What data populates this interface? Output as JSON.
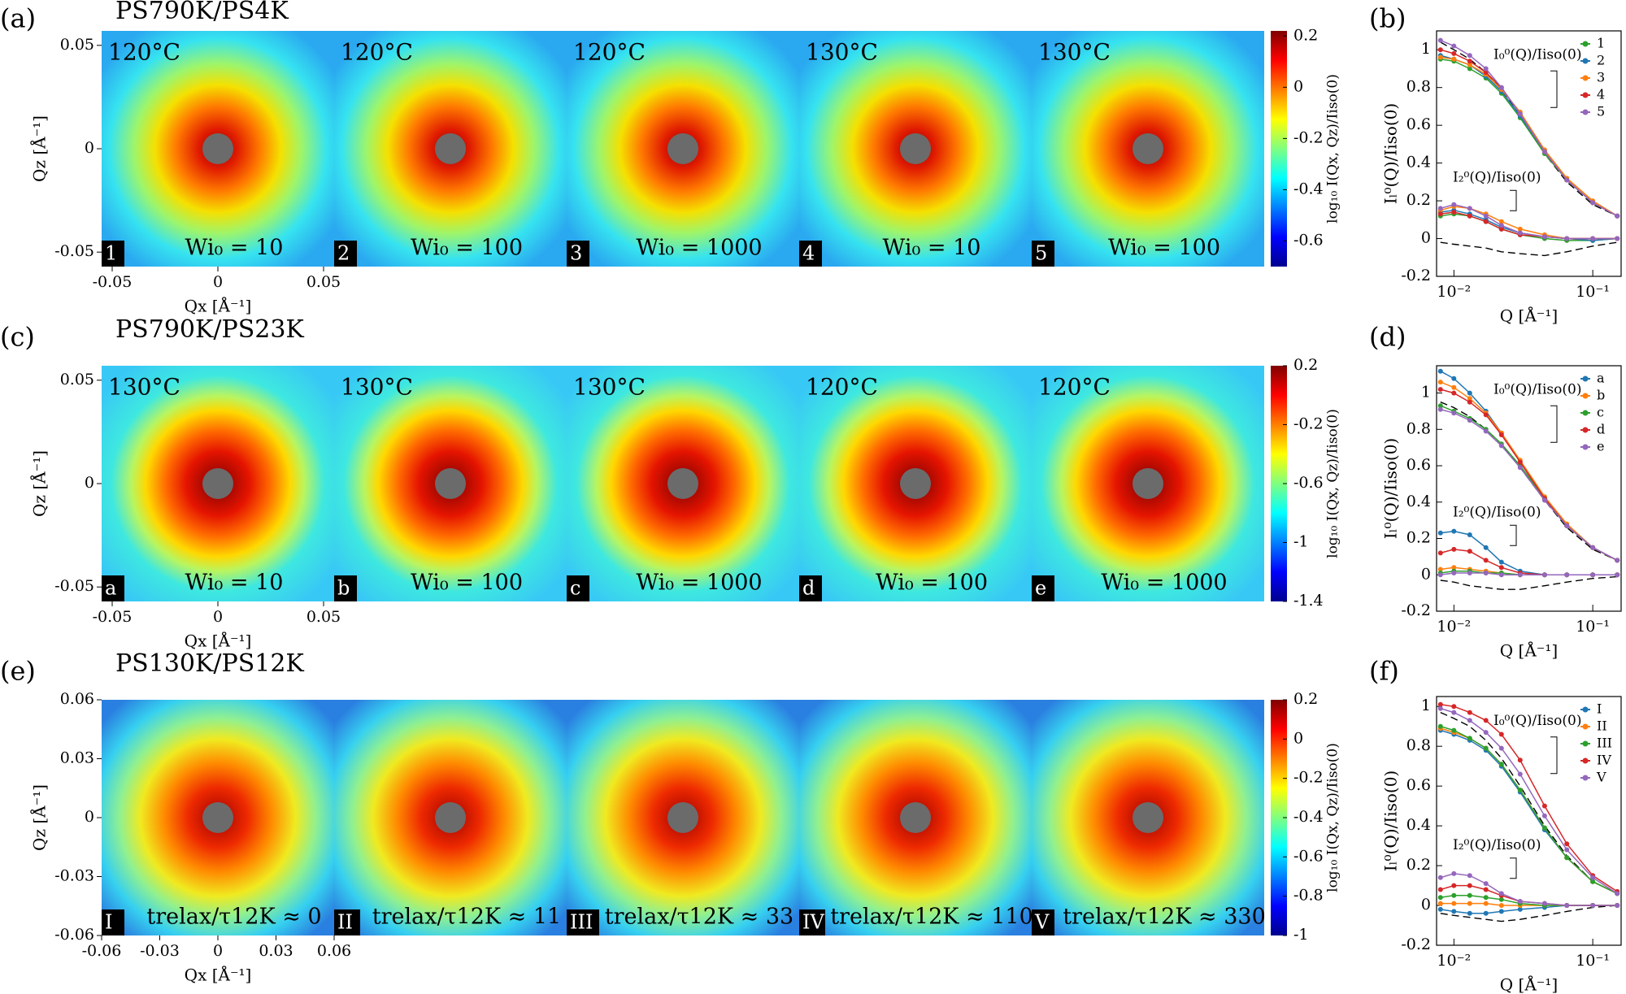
{
  "chart_data": [
    {
      "type": "heatmap",
      "panel_label": "(a)",
      "title": "PS790K/PS4K",
      "xlabel": "Qx [Å⁻¹]",
      "ylabel": "Qz [Å⁻¹]",
      "xlim": [
        -0.055,
        0.055
      ],
      "xticks": [
        -0.05,
        0,
        0.05
      ],
      "ylim": [
        -0.057,
        0.057
      ],
      "yticks": [
        -0.05,
        0,
        0.05
      ],
      "colorbar_label": "log₁₀ I(Qx, Qz)/Iiso(0)",
      "colormap": "jet",
      "clim": [
        -0.7,
        0.22
      ],
      "cticks": [
        -0.6,
        -0.4,
        -0.2,
        0,
        0.2
      ],
      "images": [
        {
          "id": "1",
          "temperature": "120°C",
          "condition": "Wi₀ = 10"
        },
        {
          "id": "2",
          "temperature": "120°C",
          "condition": "Wi₀ = 100"
        },
        {
          "id": "3",
          "temperature": "120°C",
          "condition": "Wi₀ = 1000"
        },
        {
          "id": "4",
          "temperature": "130°C",
          "condition": "Wi₀ = 10"
        },
        {
          "id": "5",
          "temperature": "130°C",
          "condition": "Wi₀ = 100"
        }
      ]
    },
    {
      "type": "line",
      "panel_label": "(b)",
      "xlabel": "Q [Å⁻¹]",
      "ylabel": "Iₗ⁰(Q)/Iiso(0)",
      "xscale": "log",
      "x": [
        0.008,
        0.01,
        0.013,
        0.017,
        0.022,
        0.03,
        0.045,
        0.065,
        0.1,
        0.15
      ],
      "xlim": [
        0.0075,
        0.16
      ],
      "xticks": [
        {
          "value": 0.01,
          "label": "10⁻²"
        },
        {
          "value": 0.1,
          "label": "10⁻¹"
        }
      ],
      "ylim": [
        -0.2,
        1.1
      ],
      "yticks": [
        -0.2,
        0,
        0.2,
        0.4,
        0.6,
        0.8,
        1
      ],
      "legend": "upper right",
      "annotations": [
        "I₀⁰(Q)/Iiso(0)",
        "I₂⁰(Q)/Iiso(0)"
      ],
      "theory": {
        "color": "#000000",
        "i0": [
          1.04,
          1.0,
          0.95,
          0.88,
          0.79,
          0.65,
          0.45,
          0.3,
          0.18,
          0.12
        ],
        "i2": [
          -0.02,
          -0.03,
          -0.04,
          -0.05,
          -0.07,
          -0.08,
          -0.09,
          -0.07,
          -0.04,
          -0.02
        ]
      },
      "series": [
        {
          "name": "1",
          "color": "#2ca02c",
          "values": [
            0.95,
            0.94,
            0.9,
            0.85,
            0.77,
            0.64,
            0.45,
            0.31,
            0.19,
            0.12
          ],
          "i2_values": [
            0.12,
            0.13,
            0.12,
            0.09,
            0.05,
            0.02,
            0,
            -0.01,
            -0.01,
            0
          ]
        },
        {
          "name": "2",
          "color": "#1f77b4",
          "values": [
            0.97,
            0.95,
            0.92,
            0.86,
            0.78,
            0.65,
            0.46,
            0.31,
            0.19,
            0.12
          ],
          "i2_values": [
            0.14,
            0.15,
            0.13,
            0.1,
            0.06,
            0.03,
            0.01,
            0,
            -0.01,
            0
          ]
        },
        {
          "name": "3",
          "color": "#ff7f0e",
          "values": [
            0.96,
            0.95,
            0.92,
            0.87,
            0.79,
            0.67,
            0.47,
            0.32,
            0.2,
            0.12
          ],
          "i2_values": [
            0.15,
            0.17,
            0.16,
            0.13,
            0.09,
            0.05,
            0.02,
            0,
            0,
            0
          ]
        },
        {
          "name": "4",
          "color": "#d62728",
          "values": [
            1.0,
            0.98,
            0.94,
            0.88,
            0.8,
            0.66,
            0.46,
            0.31,
            0.19,
            0.12
          ],
          "i2_values": [
            0.13,
            0.14,
            0.12,
            0.09,
            0.05,
            0.02,
            0.01,
            0,
            0,
            0
          ]
        },
        {
          "name": "5",
          "color": "#9467bd",
          "values": [
            1.05,
            1.02,
            0.97,
            0.9,
            0.8,
            0.66,
            0.46,
            0.31,
            0.19,
            0.12
          ],
          "i2_values": [
            0.16,
            0.18,
            0.16,
            0.12,
            0.07,
            0.03,
            0.01,
            0,
            0,
            0
          ]
        }
      ]
    },
    {
      "type": "heatmap",
      "panel_label": "(c)",
      "title": "PS790K/PS23K",
      "xlabel": "Qx [Å⁻¹]",
      "ylabel": "Qz [Å⁻¹]",
      "xlim": [
        -0.055,
        0.055
      ],
      "xticks": [
        -0.05,
        0,
        0.05
      ],
      "ylim": [
        -0.057,
        0.057
      ],
      "yticks": [
        -0.05,
        0,
        0.05
      ],
      "colorbar_label": "log₁₀ I(Qx, Qz)/Iiso(0)",
      "colormap": "jet",
      "clim": [
        -1.4,
        0.2
      ],
      "cticks": [
        -1.4,
        -1,
        -0.6,
        -0.2,
        0.2
      ],
      "images": [
        {
          "id": "a",
          "temperature": "130°C",
          "condition": "Wi₀ = 10"
        },
        {
          "id": "b",
          "temperature": "130°C",
          "condition": "Wi₀ = 100"
        },
        {
          "id": "c",
          "temperature": "130°C",
          "condition": "Wi₀ = 1000"
        },
        {
          "id": "d",
          "temperature": "120°C",
          "condition": "Wi₀ = 100"
        },
        {
          "id": "e",
          "temperature": "120°C",
          "condition": "Wi₀ = 1000"
        }
      ]
    },
    {
      "type": "line",
      "panel_label": "(d)",
      "xlabel": "Q [Å⁻¹]",
      "ylabel": "Iₗ⁰(Q)/Iiso(0)",
      "xscale": "log",
      "x": [
        0.008,
        0.01,
        0.013,
        0.017,
        0.022,
        0.03,
        0.045,
        0.065,
        0.1,
        0.15
      ],
      "xlim": [
        0.0075,
        0.16
      ],
      "xticks": [
        {
          "value": 0.01,
          "label": "10⁻²"
        },
        {
          "value": 0.1,
          "label": "10⁻¹"
        }
      ],
      "ylim": [
        -0.2,
        1.15
      ],
      "yticks": [
        -0.2,
        0,
        0.2,
        0.4,
        0.6,
        0.8,
        1
      ],
      "legend": "upper right",
      "annotations": [
        "I₀⁰(Q)/Iiso(0)",
        "I₂⁰(Q)/Iiso(0)"
      ],
      "theory": {
        "color": "#000000",
        "i0": [
          0.95,
          0.92,
          0.87,
          0.8,
          0.72,
          0.59,
          0.41,
          0.26,
          0.14,
          0.08
        ],
        "i2": [
          -0.03,
          -0.04,
          -0.06,
          -0.07,
          -0.08,
          -0.08,
          -0.06,
          -0.04,
          -0.02,
          -0.01
        ]
      },
      "series": [
        {
          "name": "a",
          "color": "#1f77b4",
          "values": [
            1.12,
            1.08,
            1.0,
            0.9,
            0.78,
            0.62,
            0.42,
            0.27,
            0.15,
            0.08
          ],
          "i2_values": [
            0.23,
            0.24,
            0.22,
            0.15,
            0.07,
            0.02,
            0,
            0,
            0,
            0
          ]
        },
        {
          "name": "b",
          "color": "#ff7f0e",
          "values": [
            1.06,
            1.03,
            0.97,
            0.89,
            0.78,
            0.63,
            0.43,
            0.28,
            0.15,
            0.08
          ],
          "i2_values": [
            0.03,
            0.04,
            0.03,
            0.02,
            0.01,
            0,
            0,
            0,
            0,
            0
          ]
        },
        {
          "name": "c",
          "color": "#2ca02c",
          "values": [
            0.93,
            0.9,
            0.86,
            0.8,
            0.72,
            0.6,
            0.42,
            0.27,
            0.15,
            0.08
          ],
          "i2_values": [
            0.01,
            0.02,
            0.02,
            0.01,
            0.01,
            0,
            0,
            0,
            0,
            0
          ]
        },
        {
          "name": "d",
          "color": "#d62728",
          "values": [
            1.02,
            1.0,
            0.95,
            0.88,
            0.77,
            0.62,
            0.42,
            0.27,
            0.15,
            0.08
          ],
          "i2_values": [
            0.12,
            0.14,
            0.13,
            0.08,
            0.04,
            0.01,
            0,
            0,
            0,
            0
          ]
        },
        {
          "name": "e",
          "color": "#9467bd",
          "values": [
            0.91,
            0.89,
            0.85,
            0.79,
            0.71,
            0.59,
            0.41,
            0.27,
            0.15,
            0.08
          ],
          "i2_values": [
            0,
            0.01,
            0.01,
            0.01,
            0,
            0,
            0,
            0,
            0,
            0
          ]
        }
      ]
    },
    {
      "type": "heatmap",
      "panel_label": "(e)",
      "title": "PS130K/PS12K",
      "xlabel": "Qx [Å⁻¹]",
      "ylabel": "Qz [Å⁻¹]",
      "xlim": [
        -0.06,
        0.06
      ],
      "xticks": [
        -0.06,
        -0.03,
        0,
        0.03,
        0.06
      ],
      "ylim": [
        -0.06,
        0.06
      ],
      "yticks": [
        -0.06,
        -0.03,
        0,
        0.03,
        0.06
      ],
      "colorbar_label": "log₁₀ I(Qx, Qz)/Iiso(0)",
      "colormap": "jet",
      "clim": [
        -1,
        0.2
      ],
      "cticks": [
        -1,
        -0.8,
        -0.6,
        -0.4,
        -0.2,
        0,
        0.2
      ],
      "images": [
        {
          "id": "I",
          "temperature": "",
          "condition": "trelax/τ12K ≈ 0"
        },
        {
          "id": "II",
          "temperature": "",
          "condition": "trelax/τ12K ≈ 11"
        },
        {
          "id": "III",
          "temperature": "",
          "condition": "trelax/τ12K ≈ 33"
        },
        {
          "id": "IV",
          "temperature": "",
          "condition": "trelax/τ12K ≈ 110"
        },
        {
          "id": "V",
          "temperature": "",
          "condition": "trelax/τ12K ≈ 330"
        }
      ]
    },
    {
      "type": "line",
      "panel_label": "(f)",
      "xlabel": "Q [Å⁻¹]",
      "ylabel": "Iₗ⁰(Q)/Iiso(0)",
      "xscale": "log",
      "x": [
        0.008,
        0.01,
        0.013,
        0.017,
        0.022,
        0.03,
        0.045,
        0.065,
        0.1,
        0.15
      ],
      "xlim": [
        0.0075,
        0.16
      ],
      "xticks": [
        {
          "value": 0.01,
          "label": "10⁻²"
        },
        {
          "value": 0.1,
          "label": "10⁻¹"
        }
      ],
      "ylim": [
        -0.2,
        1.05
      ],
      "yticks": [
        -0.2,
        0,
        0.2,
        0.4,
        0.6,
        0.8,
        1
      ],
      "legend": "upper right",
      "annotations": [
        "I₀⁰(Q)/Iiso(0)",
        "I₂⁰(Q)/Iiso(0)"
      ],
      "theory": {
        "color": "#000000",
        "i0": [
          0.97,
          0.94,
          0.9,
          0.83,
          0.74,
          0.6,
          0.4,
          0.25,
          0.12,
          0.06
        ],
        "i2": [
          -0.04,
          -0.05,
          -0.06,
          -0.07,
          -0.08,
          -0.07,
          -0.05,
          -0.03,
          -0.01,
          0
        ]
      },
      "series": [
        {
          "name": "I",
          "color": "#1f77b4",
          "values": [
            0.88,
            0.86,
            0.83,
            0.78,
            0.7,
            0.57,
            0.38,
            0.24,
            0.12,
            0.06
          ],
          "i2_values": [
            -0.02,
            -0.03,
            -0.04,
            -0.04,
            -0.03,
            -0.02,
            -0.01,
            0,
            0,
            0
          ]
        },
        {
          "name": "II",
          "color": "#ff7f0e",
          "values": [
            0.89,
            0.87,
            0.84,
            0.79,
            0.71,
            0.58,
            0.39,
            0.24,
            0.12,
            0.06
          ],
          "i2_values": [
            0.01,
            0.01,
            0.01,
            0.01,
            0,
            0,
            0,
            0,
            0,
            0
          ]
        },
        {
          "name": "III",
          "color": "#2ca02c",
          "values": [
            0.9,
            0.88,
            0.84,
            0.79,
            0.71,
            0.58,
            0.39,
            0.24,
            0.12,
            0.06
          ],
          "i2_values": [
            0.04,
            0.05,
            0.05,
            0.04,
            0.03,
            0.01,
            0,
            0,
            0,
            0
          ]
        },
        {
          "name": "IV",
          "color": "#d62728",
          "values": [
            1.01,
            1.0,
            0.97,
            0.93,
            0.86,
            0.73,
            0.5,
            0.31,
            0.15,
            0.07
          ],
          "i2_values": [
            0.08,
            0.1,
            0.1,
            0.08,
            0.05,
            0.02,
            0.01,
            0,
            0,
            0
          ]
        },
        {
          "name": "V",
          "color": "#9467bd",
          "values": [
            0.99,
            0.97,
            0.93,
            0.87,
            0.79,
            0.66,
            0.45,
            0.28,
            0.14,
            0.06
          ],
          "i2_values": [
            0.14,
            0.16,
            0.15,
            0.11,
            0.06,
            0.02,
            0.01,
            0,
            0,
            0
          ]
        }
      ]
    }
  ]
}
